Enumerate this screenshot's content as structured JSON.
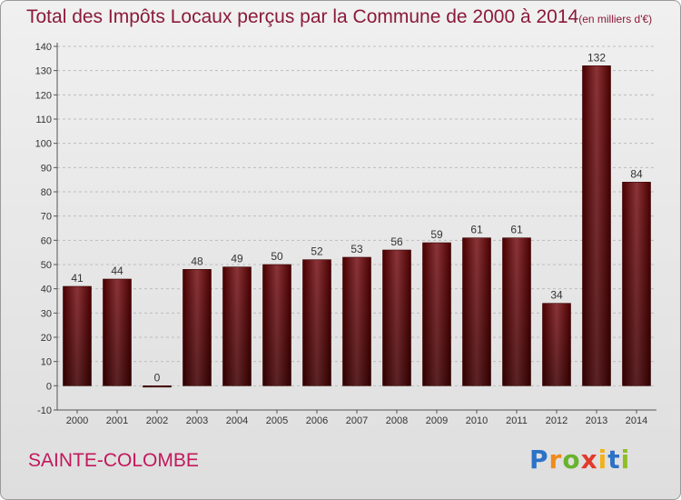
{
  "title": "Total des Impôts Locaux perçus par la Commune de 2000 à 2014",
  "unit": "(en milliers d'€)",
  "commune": "SAINTE-COLOMBE",
  "logo": {
    "p": "P",
    "r": "r",
    "o": "o",
    "x": "x",
    "i1": "i",
    "t": "t",
    "i2": "i"
  },
  "colors": {
    "bar_dark": "#4a0000",
    "bar_light": "#8b3438",
    "title": "#8b1a3a",
    "commune": "#c2185b",
    "grid": "#bdbdbd"
  },
  "chart_data": {
    "type": "bar",
    "title": "Total des Impôts Locaux perçus par la Commune de 2000 à 2014",
    "ylabel": "(en milliers d'€)",
    "categories": [
      "2000",
      "2001",
      "2002",
      "2003",
      "2004",
      "2005",
      "2006",
      "2007",
      "2008",
      "2009",
      "2010",
      "2011",
      "2012",
      "2013",
      "2014"
    ],
    "values": [
      41,
      44,
      0,
      48,
      49,
      50,
      52,
      53,
      56,
      59,
      61,
      61,
      34,
      132,
      84
    ],
    "ylim": [
      -10,
      140
    ],
    "yticks": [
      -10,
      0,
      10,
      20,
      30,
      40,
      50,
      60,
      70,
      80,
      90,
      100,
      110,
      120,
      130,
      140
    ],
    "grid": "horizontal"
  }
}
